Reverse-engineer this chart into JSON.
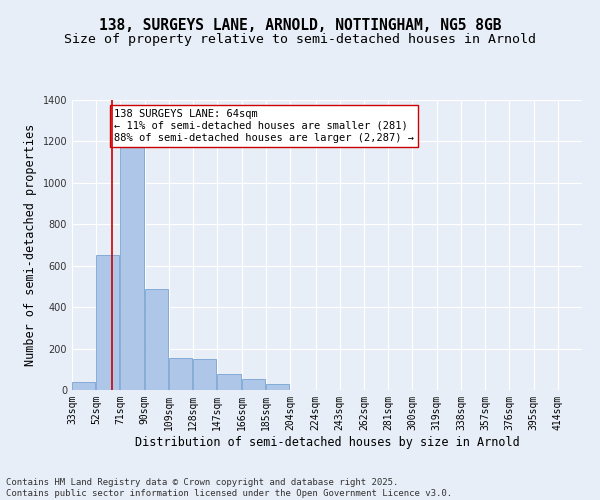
{
  "title_line1": "138, SURGEYS LANE, ARNOLD, NOTTINGHAM, NG5 8GB",
  "title_line2": "Size of property relative to semi-detached houses in Arnold",
  "xlabel": "Distribution of semi-detached houses by size in Arnold",
  "ylabel": "Number of semi-detached properties",
  "bins": [
    33,
    52,
    71,
    90,
    109,
    128,
    147,
    166,
    185,
    204,
    224,
    243,
    262,
    281,
    300,
    319,
    338,
    357,
    376,
    395,
    414
  ],
  "bar_heights": [
    40,
    650,
    1270,
    490,
    155,
    150,
    75,
    55,
    30,
    0,
    0,
    0,
    0,
    0,
    0,
    0,
    0,
    0,
    0,
    0
  ],
  "bar_color": "#aec6e8",
  "bar_edge_color": "#6699cc",
  "property_size": 64,
  "property_line_color": "#cc0000",
  "annotation_text": "138 SURGEYS LANE: 64sqm\n← 11% of semi-detached houses are smaller (281)\n88% of semi-detached houses are larger (2,287) →",
  "annotation_box_color": "#ffffff",
  "annotation_box_edge": "#cc0000",
  "ylim": [
    0,
    1400
  ],
  "yticks": [
    0,
    200,
    400,
    600,
    800,
    1000,
    1200,
    1400
  ],
  "background_color": "#e8eef7",
  "grid_color": "#ffffff",
  "footer_line1": "Contains HM Land Registry data © Crown copyright and database right 2025.",
  "footer_line2": "Contains public sector information licensed under the Open Government Licence v3.0.",
  "title_fontsize": 10.5,
  "subtitle_fontsize": 9.5,
  "axis_label_fontsize": 8.5,
  "tick_fontsize": 7,
  "annotation_fontsize": 7.5,
  "footer_fontsize": 6.5
}
